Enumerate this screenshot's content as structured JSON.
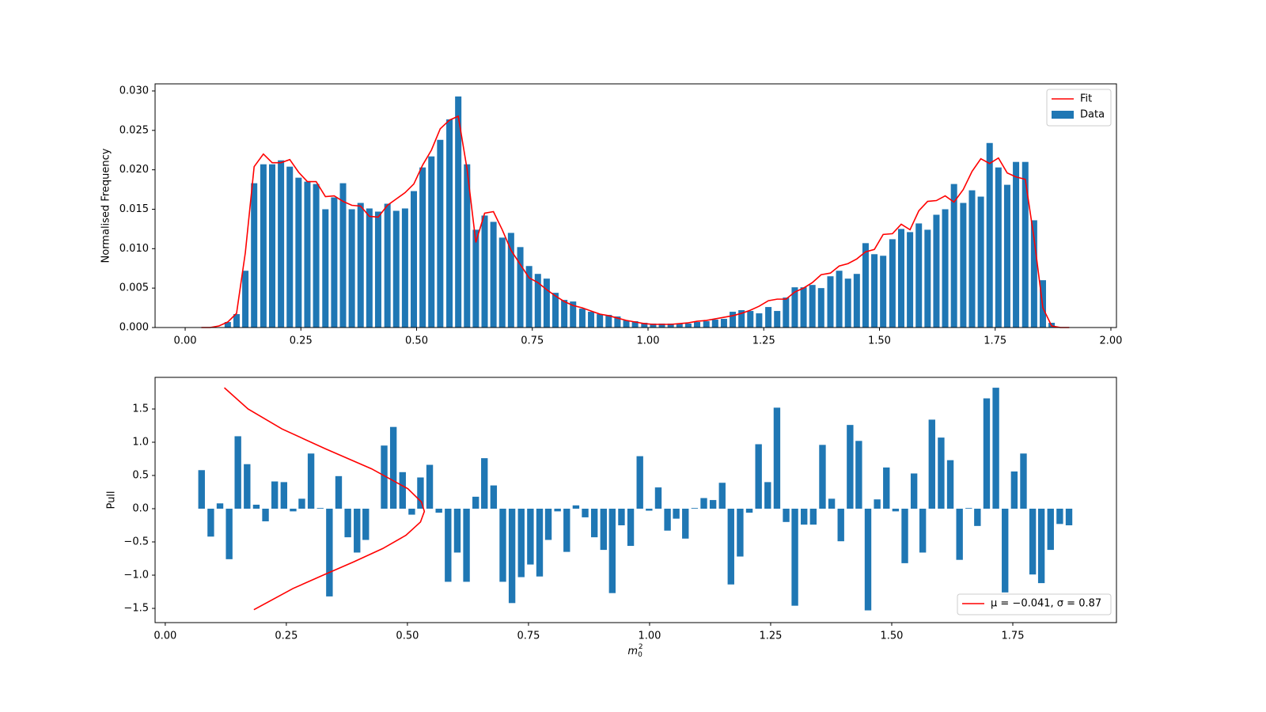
{
  "chart_data": [
    {
      "type": "bar",
      "ylabel": "Normalised Frequency",
      "xlim": [
        -0.065,
        2.012
      ],
      "ylim": [
        0,
        0.0309
      ],
      "xticks": [
        {
          "value": 0,
          "label": "0.00"
        },
        {
          "value": 0.25,
          "label": "0.25"
        },
        {
          "value": 0.5,
          "label": "0.50"
        },
        {
          "value": 0.75,
          "label": "0.75"
        },
        {
          "value": 1,
          "label": "1.00"
        },
        {
          "value": 1.25,
          "label": "1.25"
        },
        {
          "value": 1.5,
          "label": "1.50"
        },
        {
          "value": 1.75,
          "label": "1.75"
        },
        {
          "value": 2,
          "label": "2.00"
        }
      ],
      "yticks": [
        {
          "value": 0,
          "label": "0.000"
        },
        {
          "value": 0.005,
          "label": "0.005"
        },
        {
          "value": 0.01,
          "label": "0.010"
        },
        {
          "value": 0.015,
          "label": "0.015"
        },
        {
          "value": 0.02,
          "label": "0.020"
        },
        {
          "value": 0.025,
          "label": "0.025"
        },
        {
          "value": 0.03,
          "label": "0.030"
        }
      ],
      "legend": "upper right",
      "series": [
        {
          "name": "Fit",
          "type": "line",
          "color": "#ff0000",
          "x": [
            0.035,
            0.054,
            0.073,
            0.092,
            0.111,
            0.13,
            0.149,
            0.169,
            0.188,
            0.207,
            0.226,
            0.245,
            0.264,
            0.283,
            0.303,
            0.322,
            0.341,
            0.36,
            0.379,
            0.398,
            0.417,
            0.437,
            0.456,
            0.475,
            0.494,
            0.513,
            0.532,
            0.551,
            0.571,
            0.59,
            0.609,
            0.628,
            0.647,
            0.666,
            0.685,
            0.704,
            0.724,
            0.743,
            0.762,
            0.781,
            0.8,
            0.819,
            0.838,
            0.858,
            0.877,
            0.896,
            0.915,
            0.934,
            0.953,
            0.972,
            0.992,
            1.011,
            1.03,
            1.049,
            1.068,
            1.087,
            1.106,
            1.126,
            1.145,
            1.164,
            1.183,
            1.202,
            1.221,
            1.24,
            1.26,
            1.279,
            1.298,
            1.317,
            1.336,
            1.355,
            1.374,
            1.394,
            1.413,
            1.432,
            1.451,
            1.47,
            1.489,
            1.508,
            1.528,
            1.547,
            1.566,
            1.585,
            1.604,
            1.623,
            1.642,
            1.661,
            1.681,
            1.7,
            1.719,
            1.738,
            1.757,
            1.776,
            1.795,
            1.815,
            1.834,
            1.853,
            1.872,
            1.891,
            1.91
          ],
          "values": [
            0,
            0,
            0.0002,
            0.0007,
            0.0018,
            0.0095,
            0.0204,
            0.022,
            0.0209,
            0.0209,
            0.0213,
            0.0197,
            0.0185,
            0.0185,
            0.0166,
            0.0167,
            0.016,
            0.0155,
            0.0154,
            0.0141,
            0.014,
            0.0155,
            0.0163,
            0.0171,
            0.0182,
            0.0206,
            0.0225,
            0.0252,
            0.0263,
            0.0268,
            0.0201,
            0.0108,
            0.0145,
            0.0147,
            0.0124,
            0.0098,
            0.008,
            0.0063,
            0.0057,
            0.0048,
            0.004,
            0.0033,
            0.0028,
            0.0025,
            0.0021,
            0.0017,
            0.0015,
            0.0012,
            0.0009,
            0.0007,
            0.0005,
            0.0004,
            0.0004,
            0.0004,
            0.0005,
            0.0006,
            0.0008,
            0.0009,
            0.0011,
            0.0013,
            0.0015,
            0.0018,
            0.0022,
            0.0027,
            0.0034,
            0.0036,
            0.0036,
            0.0045,
            0.005,
            0.0057,
            0.0067,
            0.0069,
            0.0078,
            0.0081,
            0.0087,
            0.0096,
            0.0099,
            0.0118,
            0.0119,
            0.0131,
            0.0124,
            0.0148,
            0.016,
            0.0161,
            0.0167,
            0.0159,
            0.0175,
            0.0198,
            0.0214,
            0.0208,
            0.0215,
            0.0196,
            0.0191,
            0.0188,
            0.0113,
            0.0025,
            0.0002,
            0,
            0
          ]
        },
        {
          "name": "Data",
          "type": "bar",
          "color": "#1f77b4",
          "x": [
            0.092,
            0.111,
            0.13,
            0.149,
            0.169,
            0.188,
            0.207,
            0.226,
            0.245,
            0.264,
            0.283,
            0.303,
            0.322,
            0.341,
            0.36,
            0.379,
            0.398,
            0.417,
            0.437,
            0.456,
            0.475,
            0.494,
            0.513,
            0.532,
            0.551,
            0.571,
            0.59,
            0.609,
            0.628,
            0.647,
            0.666,
            0.685,
            0.704,
            0.724,
            0.743,
            0.762,
            0.781,
            0.8,
            0.819,
            0.838,
            0.858,
            0.877,
            0.896,
            0.915,
            0.934,
            0.953,
            0.972,
            0.992,
            1.011,
            1.03,
            1.049,
            1.068,
            1.087,
            1.106,
            1.126,
            1.145,
            1.164,
            1.183,
            1.202,
            1.221,
            1.24,
            1.26,
            1.279,
            1.298,
            1.317,
            1.336,
            1.355,
            1.374,
            1.394,
            1.413,
            1.432,
            1.451,
            1.47,
            1.489,
            1.508,
            1.528,
            1.547,
            1.566,
            1.585,
            1.604,
            1.623,
            1.642,
            1.661,
            1.681,
            1.7,
            1.719,
            1.738,
            1.757,
            1.776,
            1.795,
            1.815,
            1.834,
            1.853,
            1.872
          ],
          "values": [
            0.0007,
            0.0017,
            0.0072,
            0.0183,
            0.0207,
            0.0207,
            0.0212,
            0.0204,
            0.019,
            0.0185,
            0.0182,
            0.015,
            0.0165,
            0.0183,
            0.015,
            0.0158,
            0.0151,
            0.0147,
            0.0157,
            0.0148,
            0.0151,
            0.0173,
            0.0203,
            0.0217,
            0.0238,
            0.0264,
            0.0293,
            0.0207,
            0.0124,
            0.0142,
            0.0134,
            0.0114,
            0.012,
            0.0102,
            0.0078,
            0.0068,
            0.0062,
            0.0044,
            0.0035,
            0.0033,
            0.0024,
            0.002,
            0.0017,
            0.0016,
            0.0014,
            0.0009,
            0.0008,
            0.0006,
            0.0005,
            0.0005,
            0.0005,
            0.0005,
            0.0005,
            0.0007,
            0.0008,
            0.001,
            0.0011,
            0.002,
            0.0022,
            0.0021,
            0.0018,
            0.0026,
            0.0021,
            0.0038,
            0.0051,
            0.0051,
            0.0054,
            0.005,
            0.0065,
            0.0072,
            0.0062,
            0.0068,
            0.0107,
            0.0093,
            0.0091,
            0.0112,
            0.0125,
            0.0121,
            0.0132,
            0.0124,
            0.0143,
            0.015,
            0.0182,
            0.0158,
            0.0174,
            0.0166,
            0.0234,
            0.0203,
            0.0181,
            0.021,
            0.021,
            0.0136,
            0.006,
            0.0006
          ]
        }
      ]
    },
    {
      "type": "bar",
      "ylabel": "Pull",
      "xlabel": "m",
      "xlabel_sub": "0",
      "xlabel_sup": "2",
      "xlim": [
        -0.021,
        1.964
      ],
      "ylim": [
        -1.714,
        1.976
      ],
      "xticks": [
        {
          "value": 0,
          "label": "0.00"
        },
        {
          "value": 0.25,
          "label": "0.25"
        },
        {
          "value": 0.5,
          "label": "0.50"
        },
        {
          "value": 0.75,
          "label": "0.75"
        },
        {
          "value": 1,
          "label": "1.00"
        },
        {
          "value": 1.25,
          "label": "1.25"
        },
        {
          "value": 1.5,
          "label": "1.50"
        },
        {
          "value": 1.75,
          "label": "1.75"
        }
      ],
      "yticks": [
        {
          "value": -1.5,
          "label": "−1.5"
        },
        {
          "value": -1,
          "label": "−1.0"
        },
        {
          "value": -0.5,
          "label": "−0.5"
        },
        {
          "value": 0,
          "label": "0.0"
        },
        {
          "value": 0.5,
          "label": "0.5"
        },
        {
          "value": 1,
          "label": "1.0"
        },
        {
          "value": 1.5,
          "label": "1.5"
        }
      ],
      "legend": "lower right",
      "series": [
        {
          "name": "μ = −0.041, σ = 0.87",
          "type": "line",
          "color": "#ff0000",
          "x": [
            0.122,
            0.171,
            0.241,
            0.331,
            0.426,
            0.501,
            0.529,
            0.535,
            0.527,
            0.497,
            0.449,
            0.389,
            0.326,
            0.264,
            0.183
          ],
          "values": [
            1.82,
            1.5,
            1.2,
            0.9,
            0.6,
            0.3,
            0.1,
            -0.041,
            -0.2,
            -0.4,
            -0.6,
            -0.8,
            -1.0,
            -1.2,
            -1.52
          ]
        },
        {
          "type": "bar",
          "color": "#1f77b4",
          "x": [
            0.075,
            0.094,
            0.113,
            0.132,
            0.15,
            0.169,
            0.188,
            0.207,
            0.226,
            0.245,
            0.264,
            0.282,
            0.301,
            0.32,
            0.339,
            0.358,
            0.377,
            0.396,
            0.414,
            0.433,
            0.452,
            0.471,
            0.49,
            0.509,
            0.527,
            0.546,
            0.565,
            0.584,
            0.603,
            0.622,
            0.641,
            0.659,
            0.678,
            0.697,
            0.716,
            0.735,
            0.754,
            0.773,
            0.791,
            0.81,
            0.829,
            0.848,
            0.867,
            0.886,
            0.905,
            0.923,
            0.942,
            0.961,
            0.98,
            0.999,
            1.018,
            1.037,
            1.055,
            1.074,
            1.093,
            1.112,
            1.131,
            1.15,
            1.168,
            1.187,
            1.206,
            1.225,
            1.244,
            1.263,
            1.282,
            1.3,
            1.319,
            1.338,
            1.357,
            1.376,
            1.395,
            1.414,
            1.432,
            1.451,
            1.47,
            1.489,
            1.508,
            1.527,
            1.546,
            1.564,
            1.583,
            1.602,
            1.621,
            1.64,
            1.659,
            1.677,
            1.696,
            1.715,
            1.734,
            1.753,
            1.772,
            1.791,
            1.809,
            1.828,
            1.847,
            1.866
          ],
          "values": [
            0.58,
            -0.42,
            0.08,
            -0.76,
            1.09,
            0.67,
            0.06,
            -0.19,
            0.41,
            0.4,
            -0.04,
            0.15,
            0.83,
            0.01,
            -1.32,
            0.49,
            -0.43,
            -0.66,
            -0.47,
            0.0,
            0.95,
            1.23,
            0.55,
            -0.09,
            0.47,
            0.66,
            -0.06,
            -1.1,
            -0.66,
            -1.1,
            0.18,
            0.76,
            0.35,
            -1.1,
            -1.42,
            -1.03,
            -0.84,
            -1.02,
            -0.47,
            -0.04,
            -0.65,
            0.05,
            -0.13,
            -0.43,
            -0.62,
            -1.27,
            -0.25,
            -0.56,
            0.79,
            -0.03,
            0.32,
            -0.33,
            -0.15,
            -0.45,
            0.01,
            0.16,
            0.13,
            0.39,
            -1.14,
            -0.72,
            -0.06,
            0.97,
            0.4,
            1.52,
            -0.2,
            -1.46,
            -0.24,
            -0.24,
            0.96,
            0.15,
            -0.49,
            1.26,
            1.02,
            -1.53,
            0.14,
            0.62,
            -0.04,
            -0.82,
            0.53,
            -0.66,
            1.34,
            1.07,
            0.73,
            -0.77,
            0.01,
            -0.26,
            1.66,
            1.82,
            -1.26,
            0.56,
            0.83,
            -0.99,
            -1.12,
            -0.62,
            -0.23,
            -0.25
          ]
        }
      ]
    }
  ]
}
